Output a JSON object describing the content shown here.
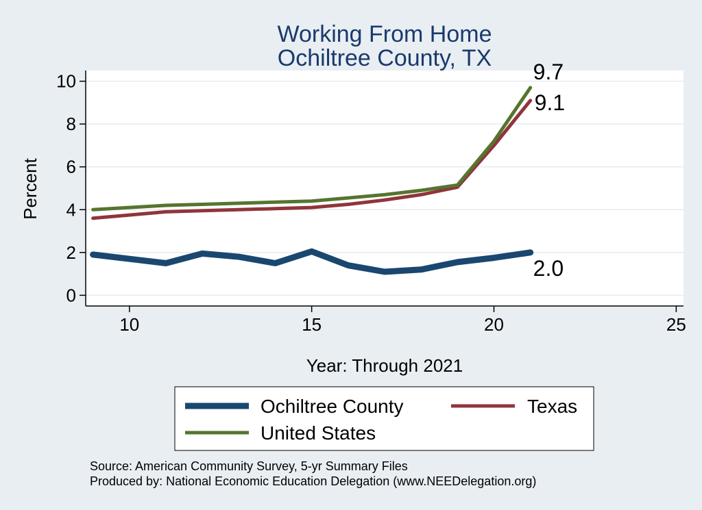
{
  "chart_data": {
    "type": "line",
    "title": "Working From Home",
    "subtitle": "Ochiltree County, TX",
    "xlabel": "Year: Through 2021",
    "ylabel": "Percent",
    "xlim": [
      8.8,
      25.2
    ],
    "ylim": [
      -0.5,
      10.5
    ],
    "xticks": [
      10,
      15,
      20,
      25
    ],
    "yticks": [
      0,
      2,
      4,
      6,
      8,
      10
    ],
    "grid": "horizontal",
    "legend_position": "bottom",
    "x": [
      9,
      10,
      11,
      12,
      13,
      14,
      15,
      16,
      17,
      18,
      19,
      20,
      21
    ],
    "series": [
      {
        "name": "Ochiltree County",
        "color": "#1a476f",
        "values": [
          1.9,
          1.7,
          1.5,
          1.95,
          1.8,
          1.5,
          2.05,
          1.4,
          1.1,
          1.2,
          1.55,
          1.75,
          2.0
        ],
        "end_label": "2.0"
      },
      {
        "name": "Texas",
        "color": "#90353b",
        "values": [
          3.6,
          3.75,
          3.9,
          3.95,
          4.0,
          4.05,
          4.1,
          4.25,
          4.45,
          4.7,
          5.05,
          7.0,
          9.1
        ],
        "end_label": "9.1"
      },
      {
        "name": "United States",
        "color": "#55752f",
        "values": [
          4.0,
          4.1,
          4.2,
          4.25,
          4.3,
          4.35,
          4.4,
          4.55,
          4.7,
          4.9,
          5.15,
          7.2,
          9.7
        ],
        "end_label": "9.7"
      }
    ],
    "notes": [
      "Source: American Community Survey, 5-yr Summary Files",
      "Produced by: National Economic Education Delegation (www.NEEDelegation.org)"
    ]
  }
}
